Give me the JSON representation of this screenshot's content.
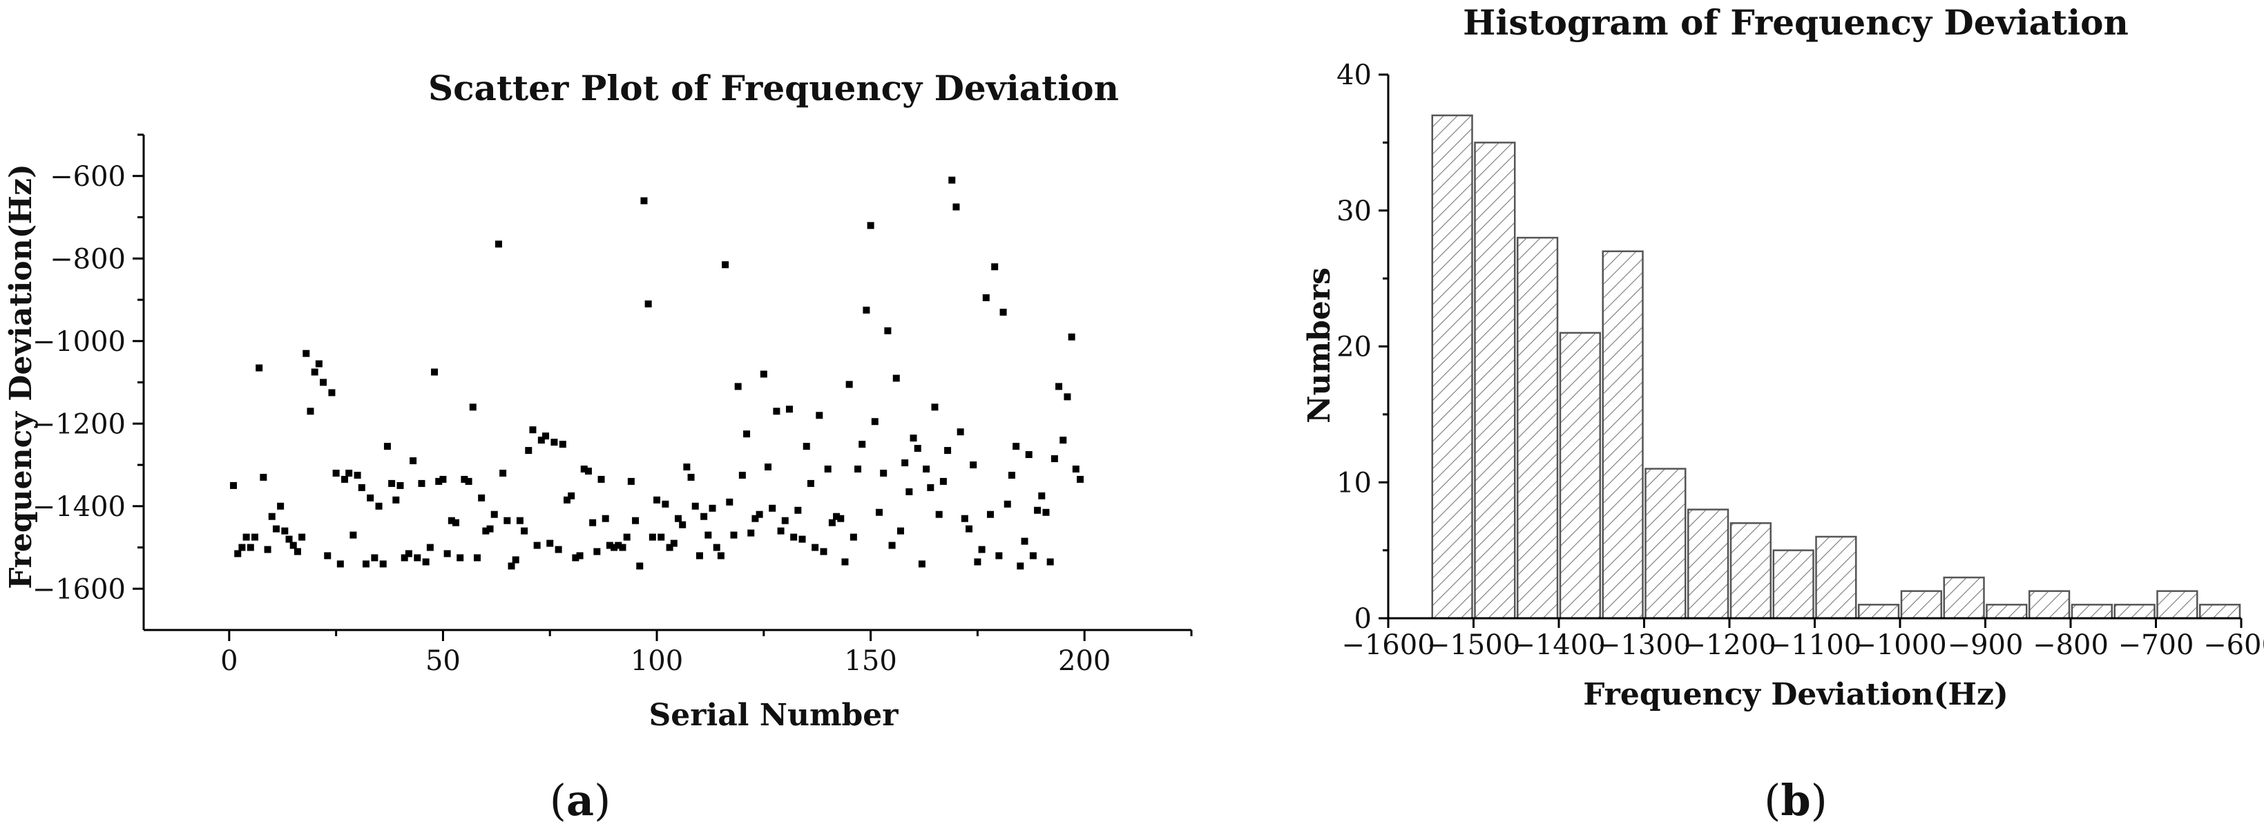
{
  "chart_data": [
    {
      "panel": "a",
      "type": "scatter",
      "title": "Scatter Plot of Frequency Deviation",
      "xlabel": "Serial Number",
      "ylabel": "Frequency Deviation(Hz)",
      "xlim": [
        -20,
        225
      ],
      "ylim": [
        -1700,
        -500
      ],
      "xticks": [
        0,
        50,
        100,
        150,
        200
      ],
      "yticks": [
        -1600,
        -1400,
        -1200,
        -1000,
        -800,
        -600
      ],
      "grid": false,
      "marker_color": "#000000",
      "points": [
        [
          1,
          -1350
        ],
        [
          2,
          -1515
        ],
        [
          3,
          -1500
        ],
        [
          4,
          -1475
        ],
        [
          5,
          -1500
        ],
        [
          6,
          -1475
        ],
        [
          7,
          -1065
        ],
        [
          8,
          -1330
        ],
        [
          9,
          -1505
        ],
        [
          10,
          -1425
        ],
        [
          11,
          -1455
        ],
        [
          12,
          -1400
        ],
        [
          13,
          -1460
        ],
        [
          14,
          -1480
        ],
        [
          15,
          -1495
        ],
        [
          16,
          -1510
        ],
        [
          17,
          -1475
        ],
        [
          18,
          -1030
        ],
        [
          19,
          -1170
        ],
        [
          20,
          -1075
        ],
        [
          21,
          -1055
        ],
        [
          22,
          -1100
        ],
        [
          23,
          -1520
        ],
        [
          24,
          -1125
        ],
        [
          25,
          -1320
        ],
        [
          26,
          -1540
        ],
        [
          27,
          -1335
        ],
        [
          28,
          -1320
        ],
        [
          29,
          -1470
        ],
        [
          30,
          -1325
        ],
        [
          31,
          -1355
        ],
        [
          32,
          -1540
        ],
        [
          33,
          -1380
        ],
        [
          34,
          -1525
        ],
        [
          35,
          -1400
        ],
        [
          36,
          -1540
        ],
        [
          37,
          -1255
        ],
        [
          38,
          -1345
        ],
        [
          39,
          -1385
        ],
        [
          40,
          -1350
        ],
        [
          41,
          -1525
        ],
        [
          42,
          -1515
        ],
        [
          43,
          -1290
        ],
        [
          44,
          -1525
        ],
        [
          45,
          -1345
        ],
        [
          46,
          -1535
        ],
        [
          47,
          -1500
        ],
        [
          48,
          -1075
        ],
        [
          49,
          -1340
        ],
        [
          50,
          -1335
        ],
        [
          51,
          -1515
        ],
        [
          52,
          -1435
        ],
        [
          53,
          -1440
        ],
        [
          54,
          -1525
        ],
        [
          55,
          -1335
        ],
        [
          56,
          -1340
        ],
        [
          57,
          -1160
        ],
        [
          58,
          -1525
        ],
        [
          59,
          -1380
        ],
        [
          60,
          -1460
        ],
        [
          61,
          -1455
        ],
        [
          62,
          -1420
        ],
        [
          63,
          -765
        ],
        [
          64,
          -1320
        ],
        [
          65,
          -1435
        ],
        [
          66,
          -1545
        ],
        [
          67,
          -1530
        ],
        [
          68,
          -1435
        ],
        [
          69,
          -1460
        ],
        [
          70,
          -1265
        ],
        [
          71,
          -1215
        ],
        [
          72,
          -1495
        ],
        [
          73,
          -1240
        ],
        [
          74,
          -1230
        ],
        [
          75,
          -1490
        ],
        [
          76,
          -1245
        ],
        [
          77,
          -1505
        ],
        [
          78,
          -1250
        ],
        [
          79,
          -1385
        ],
        [
          80,
          -1375
        ],
        [
          81,
          -1525
        ],
        [
          82,
          -1520
        ],
        [
          83,
          -1310
        ],
        [
          84,
          -1315
        ],
        [
          85,
          -1440
        ],
        [
          86,
          -1510
        ],
        [
          87,
          -1335
        ],
        [
          88,
          -1430
        ],
        [
          89,
          -1495
        ],
        [
          90,
          -1500
        ],
        [
          91,
          -1495
        ],
        [
          92,
          -1500
        ],
        [
          93,
          -1475
        ],
        [
          94,
          -1340
        ],
        [
          95,
          -1435
        ],
        [
          96,
          -1545
        ],
        [
          97,
          -660
        ],
        [
          98,
          -910
        ],
        [
          99,
          -1475
        ],
        [
          100,
          -1385
        ],
        [
          101,
          -1475
        ],
        [
          102,
          -1395
        ],
        [
          103,
          -1500
        ],
        [
          104,
          -1490
        ],
        [
          105,
          -1430
        ],
        [
          106,
          -1445
        ],
        [
          107,
          -1305
        ],
        [
          108,
          -1330
        ],
        [
          109,
          -1400
        ],
        [
          110,
          -1520
        ],
        [
          111,
          -1425
        ],
        [
          112,
          -1470
        ],
        [
          113,
          -1405
        ],
        [
          114,
          -1500
        ],
        [
          115,
          -1520
        ],
        [
          116,
          -815
        ],
        [
          117,
          -1390
        ],
        [
          118,
          -1470
        ],
        [
          119,
          -1110
        ],
        [
          120,
          -1325
        ],
        [
          121,
          -1225
        ],
        [
          122,
          -1465
        ],
        [
          123,
          -1430
        ],
        [
          124,
          -1420
        ],
        [
          125,
          -1080
        ],
        [
          126,
          -1305
        ],
        [
          127,
          -1405
        ],
        [
          128,
          -1170
        ],
        [
          129,
          -1460
        ],
        [
          130,
          -1435
        ],
        [
          131,
          -1165
        ],
        [
          132,
          -1475
        ],
        [
          133,
          -1410
        ],
        [
          134,
          -1480
        ],
        [
          135,
          -1255
        ],
        [
          136,
          -1345
        ],
        [
          137,
          -1500
        ],
        [
          138,
          -1180
        ],
        [
          139,
          -1510
        ],
        [
          140,
          -1310
        ],
        [
          141,
          -1440
        ],
        [
          142,
          -1425
        ],
        [
          143,
          -1430
        ],
        [
          144,
          -1535
        ],
        [
          145,
          -1105
        ],
        [
          146,
          -1475
        ],
        [
          147,
          -1310
        ],
        [
          148,
          -1250
        ],
        [
          149,
          -925
        ],
        [
          150,
          -720
        ],
        [
          151,
          -1195
        ],
        [
          152,
          -1415
        ],
        [
          153,
          -1320
        ],
        [
          154,
          -975
        ],
        [
          155,
          -1495
        ],
        [
          156,
          -1090
        ],
        [
          157,
          -1460
        ],
        [
          158,
          -1295
        ],
        [
          159,
          -1365
        ],
        [
          160,
          -1235
        ],
        [
          161,
          -1260
        ],
        [
          162,
          -1540
        ],
        [
          163,
          -1310
        ],
        [
          164,
          -1355
        ],
        [
          165,
          -1160
        ],
        [
          166,
          -1420
        ],
        [
          167,
          -1340
        ],
        [
          168,
          -1265
        ],
        [
          169,
          -610
        ],
        [
          170,
          -675
        ],
        [
          171,
          -1220
        ],
        [
          172,
          -1430
        ],
        [
          173,
          -1455
        ],
        [
          174,
          -1300
        ],
        [
          175,
          -1535
        ],
        [
          176,
          -1505
        ],
        [
          177,
          -895
        ],
        [
          178,
          -1420
        ],
        [
          179,
          -820
        ],
        [
          180,
          -1520
        ],
        [
          181,
          -930
        ],
        [
          182,
          -1395
        ],
        [
          183,
          -1325
        ],
        [
          184,
          -1255
        ],
        [
          185,
          -1545
        ],
        [
          186,
          -1485
        ],
        [
          187,
          -1275
        ],
        [
          188,
          -1520
        ],
        [
          189,
          -1410
        ],
        [
          190,
          -1375
        ],
        [
          191,
          -1415
        ],
        [
          192,
          -1535
        ],
        [
          193,
          -1285
        ],
        [
          194,
          -1110
        ],
        [
          195,
          -1240
        ],
        [
          196,
          -1135
        ],
        [
          197,
          -990
        ],
        [
          198,
          -1310
        ],
        [
          199,
          -1335
        ]
      ]
    },
    {
      "panel": "b",
      "type": "bar",
      "title": "Histogram of Frequency Deviation",
      "xlabel": "Frequency Deviation(Hz)",
      "ylabel": "Numbers",
      "xlim": [
        -1600,
        -600
      ],
      "ylim": [
        0,
        40
      ],
      "xticks": [
        -1600,
        -1500,
        -1400,
        -1300,
        -1200,
        -1100,
        -1000,
        -900,
        -800,
        -700,
        -600
      ],
      "yticks": [
        0,
        10,
        20,
        30,
        40
      ],
      "bin_width": 50,
      "bin_starts": [
        -1550,
        -1500,
        -1450,
        -1400,
        -1350,
        -1300,
        -1250,
        -1200,
        -1150,
        -1100,
        -1050,
        -1000,
        -950,
        -900,
        -850,
        -800,
        -750,
        -700,
        -650,
        -600
      ],
      "values": [
        37,
        35,
        28,
        21,
        27,
        11,
        8,
        7,
        5,
        6,
        1,
        2,
        3,
        1,
        2,
        1,
        1,
        2,
        1
      ],
      "bar_fill": "hatched",
      "bar_stroke": "#555555",
      "grid": false
    }
  ],
  "panel_labels": {
    "a_open": "(",
    "a_letter": "a",
    "a_close": ")",
    "b_open": "(",
    "b_letter": "b",
    "b_close": ")"
  }
}
